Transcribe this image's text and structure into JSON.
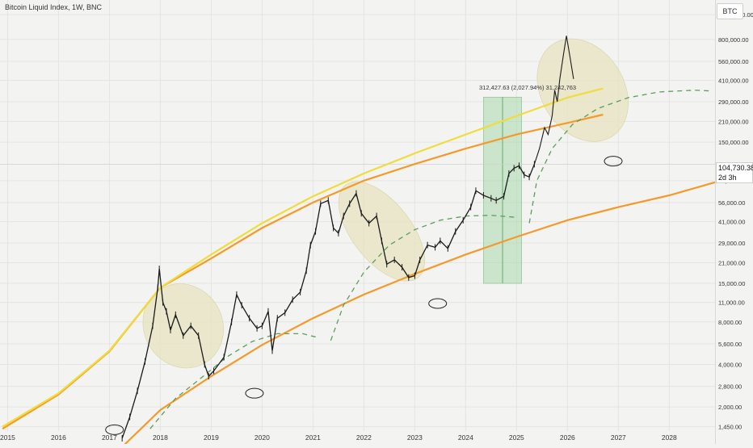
{
  "header": {
    "title": "Bitcoin Liquid Index, 1W, BNC",
    "currency": "BTC"
  },
  "measure_label": "312,427.63 (2,027.94%) 31,242,763",
  "current_price": {
    "value": "104,730.38",
    "countdown": "2d 3h"
  },
  "colors": {
    "price": "#1a1a1a",
    "yellow": "#f0dc3c",
    "orange": "#f49a2a",
    "green_dash": "#5a9e5a",
    "box_fill": "#a9d8ad",
    "ellipse_fill": "#e7e4c6"
  },
  "chart_data": {
    "type": "line",
    "y_scale": "log",
    "ylim": [
      1350,
      1300000
    ],
    "xlim": [
      2014.85,
      2028.9
    ],
    "x_ticks": [
      {
        "value": 2015,
        "label": "2015"
      },
      {
        "value": 2016,
        "label": "2016"
      },
      {
        "value": 2017,
        "label": "2017"
      },
      {
        "value": 2018,
        "label": "2018"
      },
      {
        "value": 2019,
        "label": "2019"
      },
      {
        "value": 2020,
        "label": "2020"
      },
      {
        "value": 2021,
        "label": "2021"
      },
      {
        "value": 2022,
        "label": "2022"
      },
      {
        "value": 2023,
        "label": "2023"
      },
      {
        "value": 2024,
        "label": "2024"
      },
      {
        "value": 2025,
        "label": "2025"
      },
      {
        "value": 2026,
        "label": "2026"
      },
      {
        "value": 2027,
        "label": "2027"
      },
      {
        "value": 2028,
        "label": "2028"
      }
    ],
    "y_ticks": [
      {
        "value": 1200000,
        "label": "1,200,000.00"
      },
      {
        "value": 800000,
        "label": "800,000.00"
      },
      {
        "value": 560000,
        "label": "560,000.00"
      },
      {
        "value": 410000,
        "label": "410,000.00"
      },
      {
        "value": 290000,
        "label": "290,000.00"
      },
      {
        "value": 210000,
        "label": "210,000.00"
      },
      {
        "value": 150000,
        "label": "150,000.00"
      },
      {
        "value": 80000,
        "label": "80,000.00"
      },
      {
        "value": 56000,
        "label": "56,000.00"
      },
      {
        "value": 41000,
        "label": "41,000.00"
      },
      {
        "value": 29000,
        "label": "29,000.00"
      },
      {
        "value": 21000,
        "label": "21,000.00"
      },
      {
        "value": 15000,
        "label": "15,000.00"
      },
      {
        "value": 11000,
        "label": "11,000.00"
      },
      {
        "value": 8000,
        "label": "8,000.00"
      },
      {
        "value": 5600,
        "label": "5,600.00"
      },
      {
        "value": 4000,
        "label": "4,000.00"
      },
      {
        "value": 2800,
        "label": "2,800.00"
      },
      {
        "value": 2000,
        "label": "2,000.00"
      },
      {
        "value": 1450,
        "label": "1,450.00"
      }
    ],
    "current_value": 104730.38,
    "price_series": [
      [
        2017.25,
        1200
      ],
      [
        2017.4,
        1700
      ],
      [
        2017.55,
        2600
      ],
      [
        2017.7,
        4200
      ],
      [
        2017.85,
        7500
      ],
      [
        2017.95,
        14000
      ],
      [
        2017.98,
        19000
      ],
      [
        2018.05,
        11000
      ],
      [
        2018.12,
        9500
      ],
      [
        2018.2,
        7000
      ],
      [
        2018.3,
        9000
      ],
      [
        2018.45,
        6400
      ],
      [
        2018.6,
        7500
      ],
      [
        2018.75,
        6400
      ],
      [
        2018.87,
        4000
      ],
      [
        2018.95,
        3300
      ],
      [
        2019.05,
        3600
      ],
      [
        2019.25,
        4500
      ],
      [
        2019.4,
        8000
      ],
      [
        2019.5,
        12500
      ],
      [
        2019.6,
        10500
      ],
      [
        2019.75,
        8500
      ],
      [
        2019.9,
        7200
      ],
      [
        2020.0,
        7500
      ],
      [
        2020.12,
        9500
      ],
      [
        2020.2,
        5000
      ],
      [
        2020.3,
        8500
      ],
      [
        2020.45,
        9300
      ],
      [
        2020.6,
        11500
      ],
      [
        2020.75,
        13000
      ],
      [
        2020.87,
        18500
      ],
      [
        2020.95,
        28000
      ],
      [
        2021.05,
        35000
      ],
      [
        2021.15,
        55000
      ],
      [
        2021.3,
        58000
      ],
      [
        2021.4,
        37000
      ],
      [
        2021.5,
        34000
      ],
      [
        2021.6,
        45000
      ],
      [
        2021.72,
        55000
      ],
      [
        2021.85,
        65000
      ],
      [
        2021.95,
        47000
      ],
      [
        2022.1,
        40000
      ],
      [
        2022.25,
        45000
      ],
      [
        2022.35,
        30000
      ],
      [
        2022.45,
        20500
      ],
      [
        2022.6,
        22000
      ],
      [
        2022.75,
        19500
      ],
      [
        2022.88,
        16500
      ],
      [
        2023.0,
        17000
      ],
      [
        2023.1,
        22000
      ],
      [
        2023.25,
        28000
      ],
      [
        2023.4,
        27000
      ],
      [
        2023.5,
        30000
      ],
      [
        2023.65,
        26500
      ],
      [
        2023.8,
        35000
      ],
      [
        2023.95,
        42000
      ],
      [
        2024.1,
        52000
      ],
      [
        2024.2,
        68000
      ],
      [
        2024.35,
        63000
      ],
      [
        2024.5,
        60000
      ],
      [
        2024.6,
        58000
      ],
      [
        2024.75,
        62000
      ],
      [
        2024.85,
        90000
      ],
      [
        2024.95,
        98000
      ],
      [
        2025.05,
        102000
      ],
      [
        2025.15,
        88000
      ],
      [
        2025.25,
        85000
      ],
      [
        2025.35,
        104730
      ]
    ],
    "projection_path": [
      [
        2025.35,
        104730
      ],
      [
        2025.45,
        135000
      ],
      [
        2025.55,
        190000
      ],
      [
        2025.62,
        170000
      ],
      [
        2025.7,
        230000
      ],
      [
        2025.75,
        350000
      ],
      [
        2025.8,
        290000
      ],
      [
        2025.85,
        420000
      ],
      [
        2025.92,
        620000
      ],
      [
        2025.98,
        850000
      ],
      [
        2026.05,
        600000
      ],
      [
        2026.12,
        420000
      ]
    ],
    "overlays": {
      "yellow_curve": [
        [
          2014.9,
          1450
        ],
        [
          2016,
          2500
        ],
        [
          2017,
          5000
        ],
        [
          2018,
          14000
        ],
        [
          2019,
          24000
        ],
        [
          2020,
          40000
        ],
        [
          2021,
          62000
        ],
        [
          2022,
          90000
        ],
        [
          2023,
          125000
        ],
        [
          2024,
          170000
        ],
        [
          2025,
          230000
        ],
        [
          2026,
          310000
        ],
        [
          2026.7,
          360000
        ]
      ],
      "orange_upper": [
        [
          2014.9,
          1400
        ],
        [
          2016,
          2450
        ],
        [
          2017,
          4950
        ],
        [
          2018,
          14000
        ],
        [
          2019,
          22500
        ],
        [
          2020,
          37000
        ],
        [
          2021,
          56000
        ],
        [
          2022,
          80000
        ],
        [
          2023,
          105000
        ],
        [
          2024,
          135000
        ],
        [
          2025,
          170000
        ],
        [
          2026,
          205000
        ],
        [
          2026.7,
          235000
        ]
      ],
      "orange_lower": [
        [
          2017.2,
          1000
        ],
        [
          2018,
          1900
        ],
        [
          2019,
          3300
        ],
        [
          2020,
          5500
        ],
        [
          2021,
          8500
        ],
        [
          2022,
          12500
        ],
        [
          2023,
          17500
        ],
        [
          2024,
          24000
        ],
        [
          2025,
          32000
        ],
        [
          2026,
          42000
        ],
        [
          2027,
          52000
        ],
        [
          2028,
          63000
        ],
        [
          2028.9,
          78000
        ]
      ],
      "green_dash_1": [
        [
          2017.8,
          1400
        ],
        [
          2018.3,
          2300
        ],
        [
          2018.8,
          3200
        ],
        [
          2019.3,
          4500
        ],
        [
          2019.8,
          5800
        ],
        [
          2020.3,
          6600
        ],
        [
          2020.8,
          6600
        ],
        [
          2021.1,
          6200
        ]
      ],
      "green_dash_1_tail": [
        [
          2021.1,
          6000
        ],
        [
          2021.1,
          5900
        ]
      ],
      "green_dash_2": [
        [
          2021.35,
          5900
        ],
        [
          2021.6,
          10500
        ],
        [
          2022.0,
          18000
        ],
        [
          2022.5,
          28000
        ],
        [
          2023.0,
          36000
        ],
        [
          2023.5,
          42000
        ],
        [
          2024.0,
          45000
        ],
        [
          2024.5,
          45500
        ],
        [
          2025.0,
          44000
        ]
      ],
      "green_dash_3": [
        [
          2025.25,
          40000
        ],
        [
          2025.4,
          80000
        ],
        [
          2025.7,
          135000
        ],
        [
          2026.1,
          200000
        ],
        [
          2026.6,
          260000
        ],
        [
          2027.2,
          310000
        ],
        [
          2027.8,
          340000
        ],
        [
          2028.5,
          350000
        ],
        [
          2028.85,
          345000
        ]
      ],
      "box": {
        "x0": 2024.35,
        "x1": 2025.1,
        "y0": 15000,
        "y1": 312428
      },
      "ellipses": [
        {
          "center": [
            2018.45,
            7500
          ],
          "rx_years": 0.55,
          "ry_factor": 3.2,
          "angle": 60
        },
        {
          "center": [
            2022.35,
            35000
          ],
          "rx_years": 0.75,
          "ry_factor": 2.4,
          "angle": 52
        },
        {
          "center": [
            2026.3,
            350000
          ],
          "rx_years": 0.7,
          "ry_factor": 3.4,
          "angle": 58
        }
      ],
      "circles": [
        [
          2019.85,
          2500
        ],
        [
          2026.9,
          110000
        ],
        [
          2023.45,
          10800
        ],
        [
          2017.1,
          1380
        ]
      ]
    }
  }
}
